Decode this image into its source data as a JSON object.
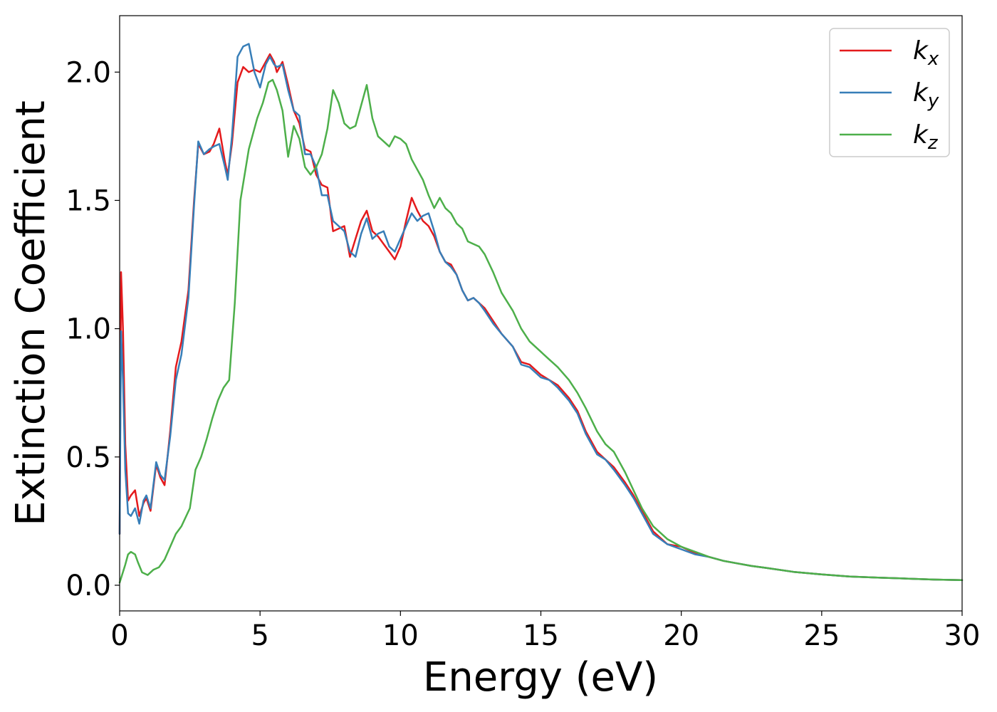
{
  "chart_data": {
    "type": "line",
    "title": "",
    "xlabel": "Energy (eV)",
    "ylabel": "Extinction Coefficient",
    "xlim": [
      0,
      30
    ],
    "ylim": [
      -0.1,
      2.22
    ],
    "xticks": [
      0,
      5,
      10,
      15,
      20,
      25,
      30
    ],
    "xtick_labels": [
      "0",
      "5",
      "10",
      "15",
      "20",
      "25",
      "30"
    ],
    "yticks": [
      0.0,
      0.5,
      1.0,
      1.5,
      2.0
    ],
    "ytick_labels": [
      "0.0",
      "0.5",
      "1.0",
      "1.5",
      "2.0"
    ],
    "grid": false,
    "legend_position": "top-right",
    "series": [
      {
        "name": "k_x",
        "label_main": "k",
        "label_sub": "x",
        "color": "#e41a1c",
        "x": [
          0,
          0.05,
          0.12,
          0.2,
          0.3,
          0.4,
          0.55,
          0.7,
          0.85,
          0.95,
          1.1,
          1.3,
          1.45,
          1.6,
          1.8,
          2.0,
          2.2,
          2.45,
          2.65,
          2.8,
          3.0,
          3.2,
          3.35,
          3.55,
          3.75,
          3.85,
          4.0,
          4.2,
          4.4,
          4.6,
          4.8,
          5.0,
          5.2,
          5.35,
          5.5,
          5.6,
          5.8,
          6.0,
          6.2,
          6.4,
          6.6,
          6.8,
          7.0,
          7.2,
          7.4,
          7.6,
          7.8,
          8.0,
          8.2,
          8.4,
          8.6,
          8.8,
          9.0,
          9.2,
          9.4,
          9.6,
          9.8,
          10.0,
          10.2,
          10.4,
          10.6,
          10.8,
          11.0,
          11.2,
          11.4,
          11.6,
          11.8,
          12.0,
          12.2,
          12.4,
          12.6,
          12.8,
          13.0,
          13.3,
          13.6,
          14.0,
          14.3,
          14.6,
          15.0,
          15.3,
          15.6,
          16.0,
          16.3,
          16.6,
          17.0,
          17.3,
          17.6,
          18.0,
          18.3,
          18.6,
          19.0,
          19.5,
          20.0,
          20.5,
          21.0,
          21.5,
          22.0,
          22.5,
          23.0,
          24.0,
          25.0,
          26.0,
          27.0,
          28.0,
          29.0,
          30.0
        ],
        "y": [
          0.2,
          1.22,
          1.0,
          0.55,
          0.33,
          0.35,
          0.37,
          0.27,
          0.32,
          0.34,
          0.29,
          0.47,
          0.42,
          0.39,
          0.6,
          0.85,
          0.95,
          1.15,
          1.5,
          1.72,
          1.68,
          1.69,
          1.72,
          1.78,
          1.65,
          1.6,
          1.72,
          1.96,
          2.02,
          2.0,
          2.01,
          2.0,
          2.04,
          2.07,
          2.04,
          2.0,
          2.04,
          1.95,
          1.85,
          1.8,
          1.7,
          1.69,
          1.6,
          1.56,
          1.55,
          1.38,
          1.39,
          1.4,
          1.28,
          1.35,
          1.42,
          1.46,
          1.38,
          1.36,
          1.33,
          1.3,
          1.27,
          1.32,
          1.42,
          1.51,
          1.46,
          1.42,
          1.4,
          1.36,
          1.3,
          1.26,
          1.25,
          1.21,
          1.15,
          1.11,
          1.12,
          1.1,
          1.08,
          1.03,
          0.98,
          0.93,
          0.87,
          0.86,
          0.82,
          0.8,
          0.78,
          0.73,
          0.68,
          0.6,
          0.52,
          0.49,
          0.46,
          0.4,
          0.35,
          0.29,
          0.21,
          0.16,
          0.15,
          0.125,
          0.11,
          0.095,
          0.085,
          0.075,
          0.068,
          0.052,
          0.042,
          0.034,
          0.03,
          0.026,
          0.022,
          0.02
        ]
      },
      {
        "name": "k_y",
        "label_main": "k",
        "label_sub": "y",
        "color": "#377eb8",
        "x": [
          0,
          0.05,
          0.12,
          0.2,
          0.3,
          0.4,
          0.55,
          0.7,
          0.85,
          0.95,
          1.1,
          1.3,
          1.45,
          1.6,
          1.8,
          2.0,
          2.2,
          2.45,
          2.65,
          2.8,
          3.0,
          3.2,
          3.35,
          3.55,
          3.75,
          3.85,
          4.0,
          4.2,
          4.4,
          4.6,
          4.8,
          5.0,
          5.2,
          5.35,
          5.5,
          5.6,
          5.8,
          6.0,
          6.2,
          6.4,
          6.6,
          6.8,
          7.0,
          7.2,
          7.4,
          7.6,
          7.8,
          8.0,
          8.2,
          8.4,
          8.6,
          8.8,
          9.0,
          9.2,
          9.4,
          9.6,
          9.8,
          10.0,
          10.2,
          10.4,
          10.6,
          10.8,
          11.0,
          11.2,
          11.4,
          11.6,
          11.8,
          12.0,
          12.2,
          12.4,
          12.6,
          12.8,
          13.0,
          13.3,
          13.6,
          14.0,
          14.3,
          14.6,
          15.0,
          15.3,
          15.6,
          16.0,
          16.3,
          16.6,
          17.0,
          17.3,
          17.6,
          18.0,
          18.3,
          18.6,
          19.0,
          19.5,
          20.0,
          20.5,
          21.0,
          21.5,
          22.0,
          22.5,
          23.0,
          24.0,
          25.0,
          26.0,
          27.0,
          28.0,
          29.0,
          30.0
        ],
        "y": [
          0.2,
          0.99,
          0.8,
          0.45,
          0.28,
          0.27,
          0.3,
          0.24,
          0.33,
          0.35,
          0.3,
          0.48,
          0.43,
          0.41,
          0.58,
          0.8,
          0.9,
          1.12,
          1.48,
          1.73,
          1.68,
          1.7,
          1.71,
          1.72,
          1.63,
          1.58,
          1.75,
          2.06,
          2.1,
          2.11,
          2.0,
          1.94,
          2.03,
          2.06,
          2.03,
          2.02,
          2.03,
          1.93,
          1.85,
          1.83,
          1.68,
          1.68,
          1.63,
          1.52,
          1.52,
          1.42,
          1.4,
          1.38,
          1.3,
          1.28,
          1.37,
          1.43,
          1.35,
          1.37,
          1.38,
          1.32,
          1.3,
          1.35,
          1.4,
          1.45,
          1.42,
          1.44,
          1.45,
          1.38,
          1.3,
          1.26,
          1.24,
          1.21,
          1.15,
          1.11,
          1.12,
          1.1,
          1.07,
          1.02,
          0.98,
          0.93,
          0.86,
          0.85,
          0.81,
          0.8,
          0.77,
          0.72,
          0.67,
          0.59,
          0.51,
          0.49,
          0.45,
          0.39,
          0.34,
          0.28,
          0.2,
          0.16,
          0.14,
          0.12,
          0.11,
          0.095,
          0.085,
          0.075,
          0.068,
          0.052,
          0.042,
          0.034,
          0.03,
          0.026,
          0.022,
          0.02
        ]
      },
      {
        "name": "k_z",
        "label_main": "k",
        "label_sub": "z",
        "color": "#4daf4a",
        "x": [
          0,
          0.2,
          0.3,
          0.4,
          0.55,
          0.65,
          0.8,
          1.0,
          1.2,
          1.4,
          1.6,
          1.8,
          2.0,
          2.2,
          2.5,
          2.7,
          2.9,
          3.1,
          3.3,
          3.5,
          3.7,
          3.9,
          4.1,
          4.3,
          4.6,
          4.9,
          5.1,
          5.3,
          5.45,
          5.6,
          5.8,
          6.0,
          6.2,
          6.4,
          6.6,
          6.8,
          7.0,
          7.2,
          7.4,
          7.6,
          7.8,
          8.0,
          8.2,
          8.4,
          8.6,
          8.8,
          9.0,
          9.2,
          9.4,
          9.6,
          9.8,
          10.0,
          10.2,
          10.4,
          10.6,
          10.8,
          11.0,
          11.2,
          11.4,
          11.6,
          11.8,
          12.0,
          12.2,
          12.4,
          12.6,
          12.8,
          13.0,
          13.3,
          13.6,
          14.0,
          14.3,
          14.6,
          15.0,
          15.3,
          15.6,
          16.0,
          16.3,
          16.6,
          17.0,
          17.3,
          17.6,
          18.0,
          18.3,
          18.6,
          19.0,
          19.5,
          20.0,
          20.5,
          21.0,
          21.5,
          22.0,
          22.5,
          23.0,
          24.0,
          25.0,
          26.0,
          27.0,
          28.0,
          29.0,
          30.0
        ],
        "y": [
          0.01,
          0.08,
          0.12,
          0.13,
          0.12,
          0.09,
          0.05,
          0.04,
          0.06,
          0.07,
          0.1,
          0.15,
          0.2,
          0.23,
          0.3,
          0.45,
          0.5,
          0.57,
          0.65,
          0.72,
          0.77,
          0.8,
          1.1,
          1.5,
          1.7,
          1.82,
          1.88,
          1.96,
          1.97,
          1.93,
          1.85,
          1.67,
          1.79,
          1.74,
          1.63,
          1.6,
          1.63,
          1.68,
          1.78,
          1.93,
          1.88,
          1.8,
          1.78,
          1.79,
          1.87,
          1.95,
          1.82,
          1.75,
          1.73,
          1.71,
          1.75,
          1.74,
          1.72,
          1.66,
          1.62,
          1.58,
          1.52,
          1.47,
          1.51,
          1.47,
          1.45,
          1.41,
          1.39,
          1.34,
          1.33,
          1.32,
          1.29,
          1.22,
          1.14,
          1.07,
          1.0,
          0.95,
          0.91,
          0.88,
          0.85,
          0.8,
          0.75,
          0.69,
          0.6,
          0.55,
          0.52,
          0.44,
          0.37,
          0.3,
          0.23,
          0.18,
          0.15,
          0.13,
          0.11,
          0.095,
          0.085,
          0.075,
          0.068,
          0.052,
          0.042,
          0.034,
          0.03,
          0.026,
          0.022,
          0.02
        ]
      }
    ]
  }
}
